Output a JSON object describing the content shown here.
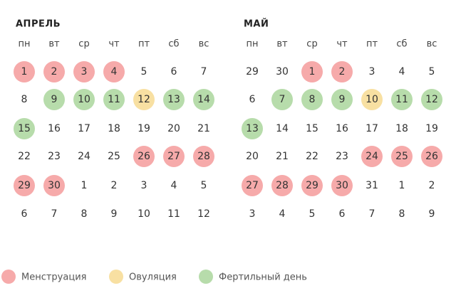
{
  "months": [
    {
      "title": "АПРЕЛЬ",
      "weekdays": [
        "пн",
        "вт",
        "ср",
        "чт",
        "пт",
        "сб",
        "вс"
      ],
      "rows": [
        [
          1,
          2,
          3,
          4,
          5,
          6,
          7
        ],
        [
          8,
          9,
          10,
          11,
          12,
          13,
          14
        ],
        [
          15,
          16,
          17,
          18,
          19,
          20,
          21
        ],
        [
          22,
          23,
          24,
          25,
          26,
          27,
          28
        ],
        [
          29,
          30,
          1,
          2,
          3,
          4,
          5
        ],
        [
          6,
          7,
          8,
          9,
          10,
          11,
          12
        ]
      ],
      "marks": [
        [
          0,
          0,
          0,
          0,
          null,
          null,
          null
        ],
        [
          null,
          2,
          2,
          2,
          1,
          2,
          2
        ],
        [
          2,
          null,
          null,
          null,
          null,
          null,
          null
        ],
        [
          null,
          null,
          null,
          null,
          0,
          0,
          0
        ],
        [
          0,
          0,
          null,
          null,
          null,
          null,
          null
        ],
        [
          null,
          null,
          null,
          null,
          null,
          null,
          null
        ]
      ]
    },
    {
      "title": "МАЙ",
      "weekdays": [
        "пн",
        "вт",
        "ср",
        "чт",
        "пт",
        "сб",
        "вс"
      ],
      "rows": [
        [
          29,
          30,
          1,
          2,
          3,
          4,
          5
        ],
        [
          6,
          7,
          8,
          9,
          10,
          11,
          12
        ],
        [
          13,
          14,
          15,
          16,
          17,
          18,
          19
        ],
        [
          20,
          21,
          22,
          23,
          24,
          25,
          26
        ],
        [
          27,
          28,
          29,
          30,
          31,
          1,
          2
        ],
        [
          3,
          4,
          5,
          6,
          7,
          8,
          9
        ]
      ],
      "marks": [
        [
          null,
          null,
          0,
          0,
          null,
          null,
          null
        ],
        [
          null,
          2,
          2,
          2,
          1,
          2,
          2
        ],
        [
          2,
          null,
          null,
          null,
          null,
          null,
          null
        ],
        [
          null,
          null,
          null,
          null,
          0,
          0,
          0
        ],
        [
          0,
          0,
          0,
          0,
          null,
          null,
          null
        ],
        [
          null,
          null,
          null,
          null,
          null,
          null,
          null
        ]
      ]
    }
  ],
  "legend": [
    {
      "label": "Менструация",
      "color": "#f6aaaa"
    },
    {
      "label": "Овуляция",
      "color": "#f8e0a2"
    },
    {
      "label": "Фертильный день",
      "color": "#b7dcab"
    }
  ]
}
